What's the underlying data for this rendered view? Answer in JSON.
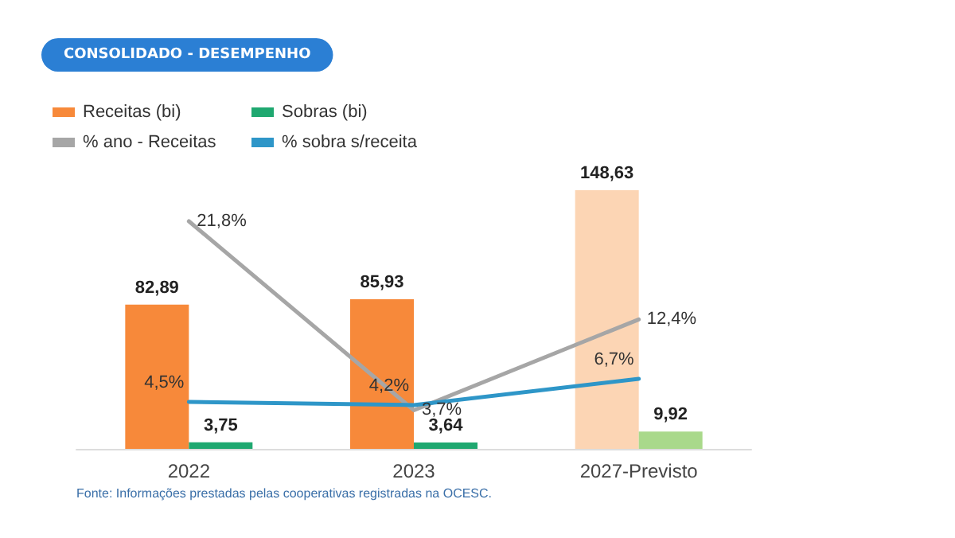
{
  "chart_data": {
    "type": "bar",
    "title": "CONSOLIDADO - DESEMPENHO",
    "categories": [
      "2022",
      "2023",
      "2027-Previsto"
    ],
    "series": [
      {
        "name": "Receitas (bi)",
        "colors": [
          "#f7893a",
          "#f7893a",
          "#fcd5b4"
        ],
        "values": [
          82.89,
          85.93,
          148.63
        ],
        "value_labels": [
          "82,89",
          "85,93",
          "148,63"
        ]
      },
      {
        "name": "Sobras (bi)",
        "colors": [
          "#1fa870",
          "#1fa870",
          "#a9d98b"
        ],
        "values": [
          3.75,
          3.64,
          9.92
        ],
        "value_labels": [
          "3,75",
          "3,64",
          "9,92"
        ]
      },
      {
        "name": "% ano - Receitas",
        "type": "line",
        "axis": "y2",
        "color": "#a6a6a6",
        "values": [
          21.8,
          3.7,
          12.4
        ],
        "value_labels": [
          "21,8%",
          "3,7%",
          "12,4%"
        ]
      },
      {
        "name": "% sobra s/receita",
        "type": "line",
        "axis": "y2",
        "color": "#2e96c8",
        "values": [
          4.5,
          4.2,
          6.7
        ],
        "value_labels": [
          "4,5%",
          "4,2%",
          "6,7%"
        ]
      }
    ],
    "legend": "top left",
    "tick_labels": "x",
    "grid": false,
    "marker": "none",
    "line_style": "solid",
    "annotations": [
      "Fonte: Informações prestadas pelas cooperativas registradas na OCESC."
    ]
  }
}
